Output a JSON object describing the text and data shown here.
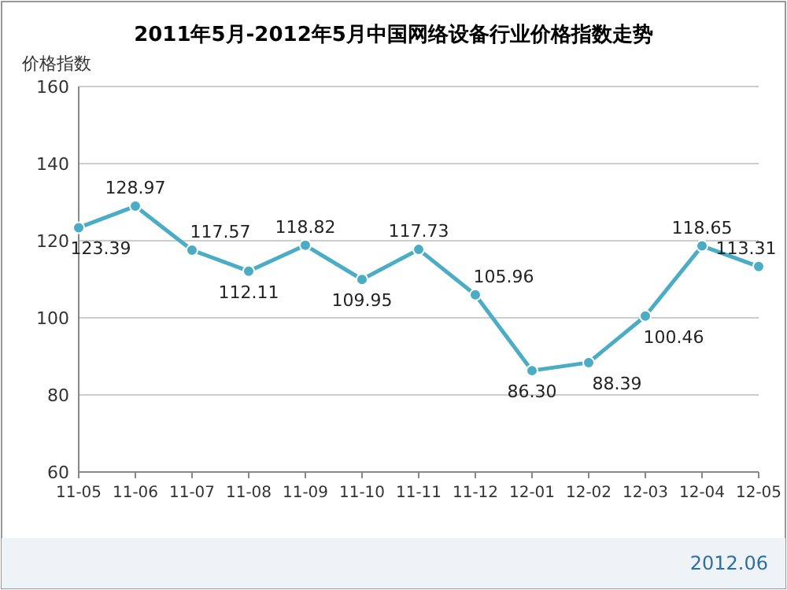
{
  "chart_data": {
    "type": "line",
    "title": "2011年5月-2012年5月中国网络设备行业价格指数走势",
    "ylabel": "价格指数",
    "categories": [
      "11-05",
      "11-06",
      "11-07",
      "11-08",
      "11-09",
      "11-10",
      "11-11",
      "11-12",
      "12-01",
      "12-02",
      "12-03",
      "12-04",
      "12-05"
    ],
    "series": [
      {
        "color": "#4bacc6",
        "values": [
          123.39,
          128.97,
          117.57,
          112.11,
          118.82,
          109.95,
          117.73,
          105.96,
          86.3,
          88.39,
          100.46,
          118.65,
          113.31
        ],
        "value_labels": [
          "123.39",
          "128.97",
          "117.57",
          "112.11",
          "118.82",
          "109.95",
          "117.73",
          "105.96",
          "86.30",
          "88.39",
          "100.46",
          "118.65",
          "113.31"
        ]
      }
    ],
    "ylim": [
      60,
      160
    ],
    "yticks": [
      60,
      80,
      100,
      120,
      140,
      160
    ],
    "grid": "y",
    "marker": "circle",
    "line_style": "solid",
    "annotations": [
      "2012.06"
    ]
  }
}
